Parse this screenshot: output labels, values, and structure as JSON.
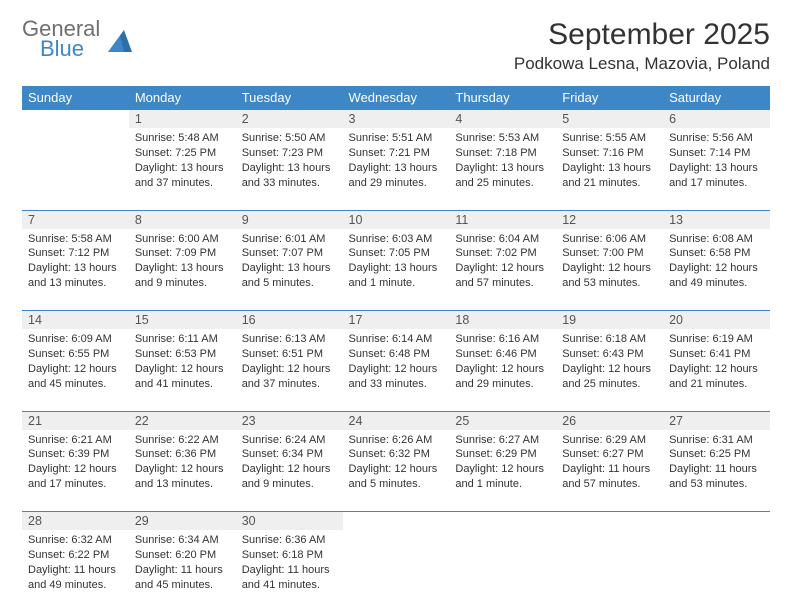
{
  "logo": {
    "line1": "General",
    "line2": "Blue"
  },
  "title": "September 2025",
  "location": "Podkowa Lesna, Mazovia, Poland",
  "colors": {
    "header_bg": "#3d87c7",
    "header_text": "#ffffff",
    "daynum_bg": "#efefef",
    "border": "#3d87c7",
    "body_text": "#333333",
    "logo_gray": "#6f6f6f",
    "logo_blue": "#3d87c7"
  },
  "weekdays": [
    "Sunday",
    "Monday",
    "Tuesday",
    "Wednesday",
    "Thursday",
    "Friday",
    "Saturday"
  ],
  "weeks": [
    [
      null,
      {
        "n": "1",
        "sunrise": "5:48 AM",
        "sunset": "7:25 PM",
        "daylight": "13 hours and 37 minutes."
      },
      {
        "n": "2",
        "sunrise": "5:50 AM",
        "sunset": "7:23 PM",
        "daylight": "13 hours and 33 minutes."
      },
      {
        "n": "3",
        "sunrise": "5:51 AM",
        "sunset": "7:21 PM",
        "daylight": "13 hours and 29 minutes."
      },
      {
        "n": "4",
        "sunrise": "5:53 AM",
        "sunset": "7:18 PM",
        "daylight": "13 hours and 25 minutes."
      },
      {
        "n": "5",
        "sunrise": "5:55 AM",
        "sunset": "7:16 PM",
        "daylight": "13 hours and 21 minutes."
      },
      {
        "n": "6",
        "sunrise": "5:56 AM",
        "sunset": "7:14 PM",
        "daylight": "13 hours and 17 minutes."
      }
    ],
    [
      {
        "n": "7",
        "sunrise": "5:58 AM",
        "sunset": "7:12 PM",
        "daylight": "13 hours and 13 minutes."
      },
      {
        "n": "8",
        "sunrise": "6:00 AM",
        "sunset": "7:09 PM",
        "daylight": "13 hours and 9 minutes."
      },
      {
        "n": "9",
        "sunrise": "6:01 AM",
        "sunset": "7:07 PM",
        "daylight": "13 hours and 5 minutes."
      },
      {
        "n": "10",
        "sunrise": "6:03 AM",
        "sunset": "7:05 PM",
        "daylight": "13 hours and 1 minute."
      },
      {
        "n": "11",
        "sunrise": "6:04 AM",
        "sunset": "7:02 PM",
        "daylight": "12 hours and 57 minutes."
      },
      {
        "n": "12",
        "sunrise": "6:06 AM",
        "sunset": "7:00 PM",
        "daylight": "12 hours and 53 minutes."
      },
      {
        "n": "13",
        "sunrise": "6:08 AM",
        "sunset": "6:58 PM",
        "daylight": "12 hours and 49 minutes."
      }
    ],
    [
      {
        "n": "14",
        "sunrise": "6:09 AM",
        "sunset": "6:55 PM",
        "daylight": "12 hours and 45 minutes."
      },
      {
        "n": "15",
        "sunrise": "6:11 AM",
        "sunset": "6:53 PM",
        "daylight": "12 hours and 41 minutes."
      },
      {
        "n": "16",
        "sunrise": "6:13 AM",
        "sunset": "6:51 PM",
        "daylight": "12 hours and 37 minutes."
      },
      {
        "n": "17",
        "sunrise": "6:14 AM",
        "sunset": "6:48 PM",
        "daylight": "12 hours and 33 minutes."
      },
      {
        "n": "18",
        "sunrise": "6:16 AM",
        "sunset": "6:46 PM",
        "daylight": "12 hours and 29 minutes."
      },
      {
        "n": "19",
        "sunrise": "6:18 AM",
        "sunset": "6:43 PM",
        "daylight": "12 hours and 25 minutes."
      },
      {
        "n": "20",
        "sunrise": "6:19 AM",
        "sunset": "6:41 PM",
        "daylight": "12 hours and 21 minutes."
      }
    ],
    [
      {
        "n": "21",
        "sunrise": "6:21 AM",
        "sunset": "6:39 PM",
        "daylight": "12 hours and 17 minutes."
      },
      {
        "n": "22",
        "sunrise": "6:22 AM",
        "sunset": "6:36 PM",
        "daylight": "12 hours and 13 minutes."
      },
      {
        "n": "23",
        "sunrise": "6:24 AM",
        "sunset": "6:34 PM",
        "daylight": "12 hours and 9 minutes."
      },
      {
        "n": "24",
        "sunrise": "6:26 AM",
        "sunset": "6:32 PM",
        "daylight": "12 hours and 5 minutes."
      },
      {
        "n": "25",
        "sunrise": "6:27 AM",
        "sunset": "6:29 PM",
        "daylight": "12 hours and 1 minute."
      },
      {
        "n": "26",
        "sunrise": "6:29 AM",
        "sunset": "6:27 PM",
        "daylight": "11 hours and 57 minutes."
      },
      {
        "n": "27",
        "sunrise": "6:31 AM",
        "sunset": "6:25 PM",
        "daylight": "11 hours and 53 minutes."
      }
    ],
    [
      {
        "n": "28",
        "sunrise": "6:32 AM",
        "sunset": "6:22 PM",
        "daylight": "11 hours and 49 minutes."
      },
      {
        "n": "29",
        "sunrise": "6:34 AM",
        "sunset": "6:20 PM",
        "daylight": "11 hours and 45 minutes."
      },
      {
        "n": "30",
        "sunrise": "6:36 AM",
        "sunset": "6:18 PM",
        "daylight": "11 hours and 41 minutes."
      },
      null,
      null,
      null,
      null
    ]
  ],
  "labels": {
    "sunrise": "Sunrise:",
    "sunset": "Sunset:",
    "daylight": "Daylight:"
  }
}
